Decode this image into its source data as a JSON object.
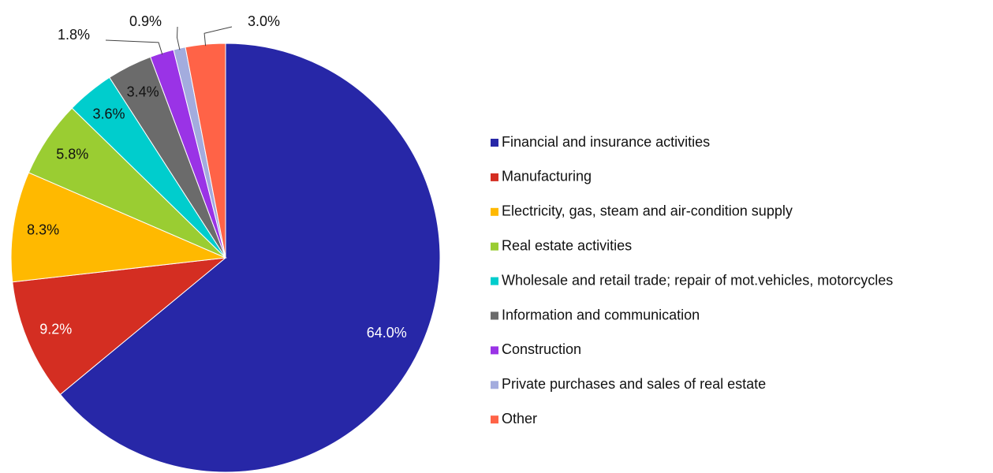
{
  "chart_data": {
    "type": "pie",
    "categories": [
      "Financial and insurance activities",
      "Manufacturing",
      "Electricity, gas, steam and air-condition supply",
      "Real estate activities",
      "Wholesale and retail trade; repair of mot.vehicles, motorcycles",
      "Information and communication",
      "Construction",
      "Private purchases and sales of real estate",
      "Other"
    ],
    "values": [
      64.0,
      9.2,
      8.3,
      5.8,
      3.6,
      3.4,
      1.8,
      0.9,
      3.0
    ],
    "value_labels": [
      "64.0%",
      "9.2%",
      "8.3%",
      "5.8%",
      "3.6%",
      "3.4%",
      "1.8%",
      "0.9%",
      "3.0%"
    ],
    "colors": [
      "#2727a7",
      "#d42e22",
      "#ffb900",
      "#9acd32",
      "#00cdcd",
      "#6b6b6b",
      "#9a33e6",
      "#a3acde",
      "#ff6347"
    ],
    "legend": "right"
  }
}
